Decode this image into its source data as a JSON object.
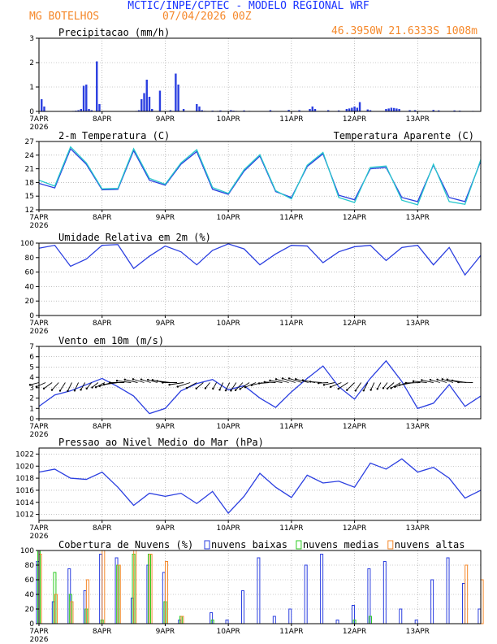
{
  "header": {
    "title": "MCTIC/INPE/CPTEC - MODELO REGIONAL WRF",
    "location": "MG BOTELHOS",
    "date": "07/04/2026 00Z",
    "coords": "46.3950W 21.6333S 1008m"
  },
  "colors": {
    "title": "#1a33ff",
    "orange": "#f5882a",
    "blue": "#2b3fe0",
    "cyan": "#27c7cc",
    "green": "#2ecc22",
    "black": "#000000"
  },
  "x_axis": {
    "labels": [
      "7APR",
      "8APR",
      "9APR",
      "10APR",
      "11APR",
      "12APR",
      "13APR"
    ],
    "year": "2026",
    "range_hours": [
      0,
      168
    ]
  },
  "chart_data": [
    {
      "type": "bar",
      "title": "Precipitacao (mm/h)",
      "ylim": [
        0,
        3
      ],
      "yticks": [
        0,
        1,
        2,
        3
      ],
      "series": [
        {
          "x": [
            1,
            2,
            13,
            14,
            15,
            16,
            17,
            18,
            19,
            20,
            22,
            23,
            37,
            38,
            39,
            40,
            41,
            42,
            43,
            46,
            50,
            52,
            53,
            55,
            60,
            61,
            62,
            63,
            66,
            68,
            69,
            72,
            73,
            74,
            75,
            78,
            80,
            88,
            95,
            99,
            103,
            104,
            105,
            110,
            114,
            117,
            118,
            119,
            120,
            121,
            122,
            125,
            126,
            132,
            133,
            134,
            135,
            136,
            137,
            141,
            143,
            150,
            152,
            158,
            160,
            165
          ],
          "values": [
            0.5,
            0.2,
            0.02,
            0.03,
            0.05,
            0.1,
            1.05,
            1.1,
            0.1,
            0.05,
            2.05,
            0.3,
            0.02,
            0.05,
            0.5,
            0.75,
            1.3,
            0.6,
            0.1,
            0.85,
            0.05,
            1.55,
            1.1,
            0.1,
            0.3,
            0.2,
            0.05,
            0.02,
            0.03,
            0.02,
            0.04,
            0.02,
            0.05,
            0.03,
            0.02,
            0.04,
            0.02,
            0.05,
            0.06,
            0.05,
            0.1,
            0.2,
            0.1,
            0.05,
            0.04,
            0.1,
            0.12,
            0.15,
            0.2,
            0.15,
            0.38,
            0.08,
            0.05,
            0.1,
            0.12,
            0.15,
            0.14,
            0.12,
            0.1,
            0.05,
            0.05,
            0.06,
            0.04,
            0.04,
            0.03,
            0.02
          ]
        }
      ]
    },
    {
      "type": "line",
      "title": "2-m Temperatura (C)",
      "legend": "Temperatura Aparente (C)",
      "ylim": [
        12,
        27
      ],
      "yticks": [
        12,
        15,
        18,
        21,
        24,
        27
      ],
      "series": [
        {
          "name": "2-m Temperatura (C)",
          "x": [
            0,
            6,
            12,
            18,
            24,
            30,
            36,
            42,
            48,
            54,
            60,
            66,
            72,
            78,
            84,
            90,
            96,
            102,
            108,
            114,
            120,
            126,
            132,
            138,
            144,
            150,
            156,
            162,
            168
          ],
          "values": [
            17.8,
            16.8,
            25.4,
            22,
            16.4,
            16.5,
            25,
            18.5,
            17.4,
            22,
            24.8,
            16.5,
            15.4,
            20.5,
            23.8,
            16,
            14.7,
            21.5,
            24.3,
            15.2,
            14.2,
            21,
            21.3,
            14.7,
            13.8,
            21.8,
            14.7,
            13.8,
            22.7
          ]
        },
        {
          "name": "Temperatura Aparente (C)",
          "x": [
            0,
            6,
            12,
            18,
            24,
            30,
            36,
            42,
            48,
            54,
            60,
            66,
            72,
            78,
            84,
            90,
            96,
            102,
            108,
            114,
            120,
            126,
            132,
            138,
            144,
            150,
            156,
            162,
            168
          ],
          "values": [
            18.5,
            17.2,
            25.8,
            22.3,
            16.6,
            16.7,
            25.4,
            18.9,
            17.6,
            22.3,
            25.2,
            16.9,
            15.6,
            20.8,
            24.1,
            16.2,
            14.4,
            21.8,
            24.6,
            14.7,
            13.6,
            21.3,
            21.6,
            14.1,
            13.1,
            22,
            13.8,
            13.2,
            23
          ]
        }
      ]
    },
    {
      "type": "line",
      "title": "Umidade Relativa em 2m (%)",
      "ylim": [
        0,
        100
      ],
      "yticks": [
        0,
        20,
        40,
        60,
        80,
        100
      ],
      "series": [
        {
          "x": [
            0,
            6,
            12,
            18,
            24,
            30,
            36,
            42,
            48,
            54,
            60,
            66,
            72,
            78,
            84,
            90,
            96,
            102,
            108,
            114,
            120,
            126,
            132,
            138,
            144,
            150,
            156,
            162,
            168
          ],
          "values": [
            93,
            97,
            68,
            78,
            97,
            98,
            65,
            82,
            96,
            88,
            70,
            90,
            99,
            92,
            70,
            85,
            97,
            96,
            73,
            88,
            95,
            97,
            76,
            94,
            97,
            70,
            94,
            56,
            83
          ]
        }
      ]
    },
    {
      "type": "line",
      "title": "Vento em 10m (m/s)",
      "ylim": [
        0,
        7
      ],
      "yticks": [
        0,
        1,
        2,
        3,
        4,
        5,
        6,
        7
      ],
      "series": [
        {
          "x": [
            0,
            6,
            12,
            18,
            24,
            30,
            36,
            42,
            48,
            54,
            60,
            66,
            72,
            78,
            84,
            90,
            96,
            102,
            108,
            114,
            120,
            126,
            132,
            138,
            144,
            150,
            156,
            162,
            168
          ],
          "values": [
            1.2,
            2.3,
            2.7,
            3.3,
            3.9,
            3.1,
            2.2,
            0.5,
            1,
            2.7,
            3.4,
            3.8,
            2.8,
            3.2,
            2,
            1.1,
            2.6,
            3.9,
            5.1,
            3.1,
            1.9,
            3.9,
            5.6,
            3.6,
            1,
            1.5,
            3.3,
            1.2,
            2.2
          ]
        }
      ]
    },
    {
      "type": "line",
      "title": "Pressao ao Nivel Medio do Mar (hPa)",
      "ylim": [
        1011,
        1023
      ],
      "yticks": [
        1012,
        1014,
        1016,
        1018,
        1020,
        1022
      ],
      "series": [
        {
          "x": [
            0,
            6,
            12,
            18,
            24,
            30,
            36,
            42,
            48,
            54,
            60,
            66,
            72,
            78,
            84,
            90,
            96,
            102,
            108,
            114,
            120,
            126,
            132,
            138,
            144,
            150,
            156,
            162,
            168
          ],
          "values": [
            1019,
            1019.5,
            1018,
            1017.8,
            1019,
            1016.5,
            1013.5,
            1015.5,
            1015,
            1015.5,
            1013.8,
            1015.8,
            1012.2,
            1015,
            1018.8,
            1016.5,
            1014.8,
            1018.5,
            1017.2,
            1017.5,
            1016.5,
            1020.5,
            1019.5,
            1021.2,
            1019,
            1019.8,
            1018,
            1014.7,
            1016
          ]
        }
      ]
    },
    {
      "type": "bar",
      "title": "Cobertura de Nuvens (%)",
      "ylim": [
        0,
        100
      ],
      "yticks": [
        0,
        20,
        40,
        60,
        80,
        100
      ],
      "series": [
        {
          "name": "nuvens baixas",
          "x": [
            0,
            6,
            12,
            18,
            24,
            30,
            36,
            42,
            48,
            54,
            60,
            66,
            72,
            78,
            84,
            90,
            96,
            102,
            108,
            114,
            120,
            126,
            132,
            138,
            144,
            150,
            156,
            162,
            168
          ],
          "values": [
            85,
            30,
            75,
            45,
            95,
            90,
            35,
            80,
            70,
            5,
            0,
            15,
            5,
            45,
            90,
            10,
            20,
            80,
            95,
            5,
            25,
            75,
            85,
            20,
            5,
            60,
            90,
            55,
            20
          ]
        },
        {
          "name": "nuvens medias",
          "x": [
            0,
            6,
            12,
            18,
            24,
            30,
            36,
            42,
            48,
            54,
            60,
            66,
            72,
            78,
            84,
            90,
            96,
            102,
            108,
            114,
            120,
            126,
            132,
            138,
            144,
            150,
            156,
            162,
            168
          ],
          "values": [
            100,
            70,
            40,
            20,
            5,
            80,
            95,
            95,
            30,
            10,
            0,
            5,
            0,
            0,
            0,
            0,
            0,
            0,
            0,
            0,
            5,
            10,
            0,
            0,
            0,
            0,
            0,
            0,
            0
          ]
        },
        {
          "name": "nuvens altas",
          "x": [
            0,
            6,
            12,
            18,
            24,
            30,
            36,
            42,
            48,
            54,
            60,
            66,
            72,
            78,
            84,
            90,
            96,
            102,
            108,
            114,
            120,
            126,
            132,
            138,
            144,
            150,
            156,
            162,
            168
          ],
          "values": [
            95,
            40,
            30,
            60,
            100,
            80,
            100,
            95,
            85,
            10,
            0,
            0,
            0,
            0,
            0,
            0,
            0,
            0,
            0,
            0,
            0,
            0,
            0,
            0,
            0,
            0,
            0,
            80,
            60
          ]
        }
      ]
    }
  ]
}
